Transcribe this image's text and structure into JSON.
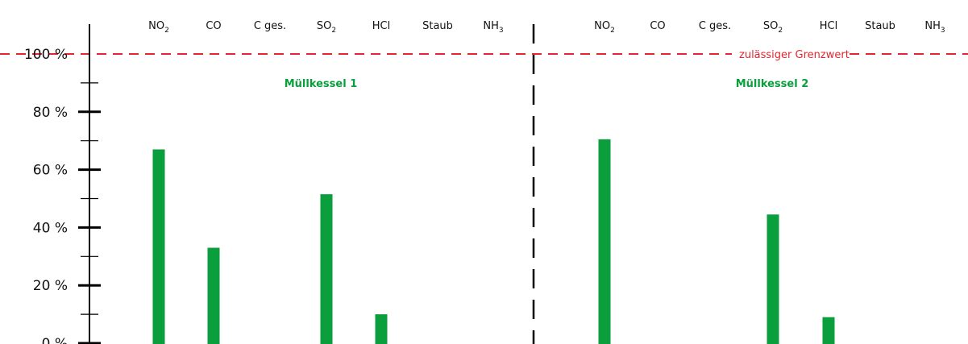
{
  "colors": {
    "bar": "#0a9e3c",
    "limit": "#e3262f",
    "axis": "#000000",
    "group_label": "#0a9e3c"
  },
  "chart_data": {
    "type": "bar",
    "ylim": [
      0,
      100
    ],
    "y_ticks": [
      "0 %",
      "20 %",
      "40 %",
      "60 %",
      "80 %",
      "100 %"
    ],
    "y_tick_values": [
      0,
      20,
      40,
      60,
      80,
      100
    ],
    "categories": [
      {
        "main": "NO",
        "sub": "2"
      },
      {
        "main": "CO",
        "sub": ""
      },
      {
        "main": "C ges.",
        "sub": ""
      },
      {
        "main": "SO",
        "sub": "2"
      },
      {
        "main": "HCl",
        "sub": ""
      },
      {
        "main": "Staub",
        "sub": ""
      },
      {
        "main": "NH",
        "sub": "3"
      }
    ],
    "series": [
      {
        "name": "Müllkessel 1",
        "values": [
          67,
          33,
          0,
          51.5,
          10,
          0,
          0
        ]
      },
      {
        "name": "Müllkessel 2",
        "values": [
          70.5,
          0,
          0,
          44.5,
          9,
          0,
          0
        ]
      }
    ],
    "reference_line": {
      "value": 100,
      "label": "zulässiger Grenzwert"
    },
    "grid": false,
    "legend": "none"
  }
}
